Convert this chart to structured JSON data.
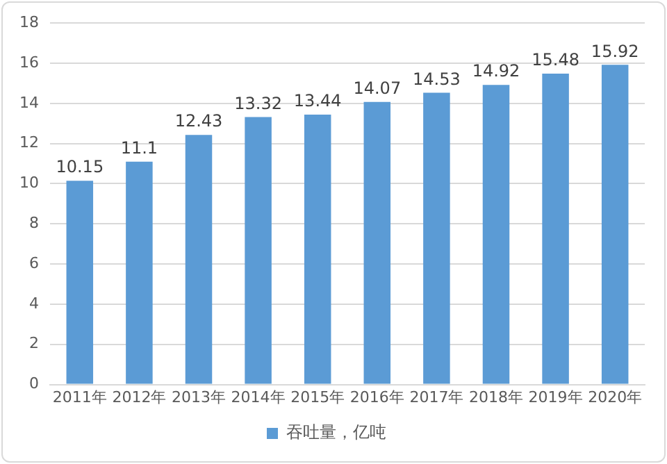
{
  "chart_data": {
    "type": "bar",
    "categories": [
      "2011年",
      "2012年",
      "2013年",
      "2014年",
      "2015年",
      "2016年",
      "2017年",
      "2018年",
      "2019年",
      "2020年"
    ],
    "series": [
      {
        "name": "吞吐量，亿吨",
        "color": "#5b9bd5",
        "values": [
          10.15,
          11.1,
          12.43,
          13.32,
          13.44,
          14.07,
          14.53,
          14.92,
          15.48,
          15.92
        ]
      }
    ],
    "ylim": [
      0,
      18
    ],
    "yticks": [
      0,
      2,
      4,
      6,
      8,
      10,
      12,
      14,
      16,
      18
    ],
    "grid": "y",
    "legend": "bottom",
    "data_labels": true
  }
}
